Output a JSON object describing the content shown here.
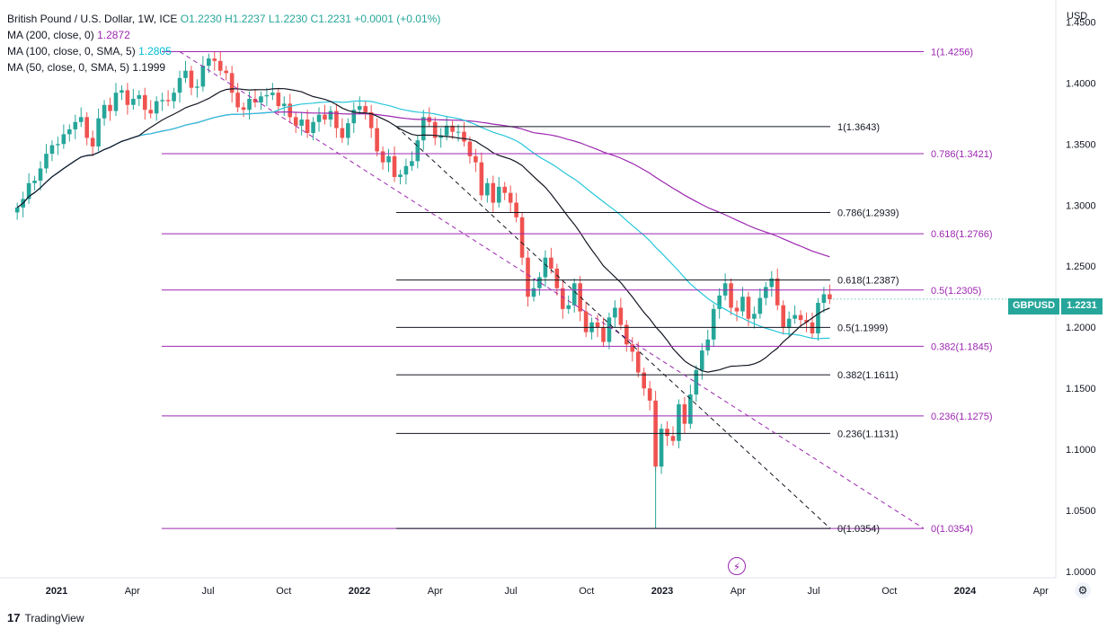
{
  "legend": {
    "title": "British Pound / U.S. Dollar, 1W, ICE",
    "ohlc": "O1.2230  H1.2237  L1.2230  C1.2231  +0.0001 (+0.01%)",
    "ma200_label": "MA (200, close, 0)",
    "ma200_value": "1.2872",
    "ma100_label": "MA (100, close, 0, SMA, 5)",
    "ma100_value": "1.2805",
    "ma50_label": "MA (50, close, 0, SMA, 5)",
    "ma50_value": "1.1999"
  },
  "currency_label": "USD",
  "price_tag": {
    "symbol": "GBPUSD",
    "price": "1.2231"
  },
  "branding": {
    "logo_text": "TradingView",
    "logo_mark": "17"
  },
  "colors": {
    "up": "#26a69a",
    "down": "#ef5350",
    "fib_purple": "#9c27b0",
    "fib_black": "#131722",
    "ma100": "#26c6da",
    "ma200": "#9c27b0",
    "ma50": "#131722"
  },
  "chart_data": {
    "type": "candlestick",
    "title": "British Pound / U.S. Dollar, 1W, ICE",
    "ylim": [
      0.995,
      1.4605
    ],
    "y_ticks": [
      "1.4500",
      "1.4000",
      "1.3500",
      "1.3000",
      "1.2500",
      "1.2000",
      "1.1500",
      "1.1000",
      "1.0500",
      "1.0000"
    ],
    "x_ticks": [
      {
        "label": "2021",
        "t": 0.0,
        "bold": true
      },
      {
        "label": "Apr",
        "t": 0.25
      },
      {
        "label": "Jul",
        "t": 0.5
      },
      {
        "label": "Oct",
        "t": 0.75
      },
      {
        "label": "2022",
        "t": 1.0,
        "bold": true
      },
      {
        "label": "Apr",
        "t": 1.25
      },
      {
        "label": "Jul",
        "t": 1.5
      },
      {
        "label": "Oct",
        "t": 1.75
      },
      {
        "label": "2023",
        "t": 2.0,
        "bold": true
      },
      {
        "label": "Apr",
        "t": 2.25
      },
      {
        "label": "Jul",
        "t": 2.5
      },
      {
        "label": "Oct",
        "t": 2.75
      },
      {
        "label": "2024",
        "t": 3.0,
        "bold": true
      },
      {
        "label": "Apr",
        "t": 3.25
      }
    ],
    "candles_start": 2020.87,
    "candle_step_weeks": 1,
    "closes": [
      1.298,
      1.305,
      1.318,
      1.32,
      1.33,
      1.342,
      1.349,
      1.35,
      1.358,
      1.362,
      1.368,
      1.372,
      1.355,
      1.348,
      1.371,
      1.382,
      1.377,
      1.392,
      1.394,
      1.382,
      1.387,
      1.39,
      1.378,
      1.375,
      1.385,
      1.386,
      1.385,
      1.392,
      1.404,
      1.41,
      1.396,
      1.397,
      1.414,
      1.42,
      1.418,
      1.41,
      1.408,
      1.392,
      1.38,
      1.378,
      1.387,
      1.384,
      1.389,
      1.39,
      1.392,
      1.381,
      1.383,
      1.372,
      1.365,
      1.37,
      1.359,
      1.368,
      1.374,
      1.37,
      1.377,
      1.363,
      1.355,
      1.367,
      1.378,
      1.381,
      1.376,
      1.363,
      1.344,
      1.335,
      1.34,
      1.323,
      1.325,
      1.332,
      1.336,
      1.353,
      1.372,
      1.368,
      1.355,
      1.357,
      1.365,
      1.36,
      1.36,
      1.352,
      1.34,
      1.335,
      1.308,
      1.318,
      1.302,
      1.315,
      1.31,
      1.302,
      1.29,
      1.257,
      1.225,
      1.232,
      1.241,
      1.257,
      1.248,
      1.232,
      1.215,
      1.218,
      1.236,
      1.213,
      1.196,
      1.204,
      1.2,
      1.188,
      1.208,
      1.216,
      1.202,
      1.186,
      1.18,
      1.163,
      1.15,
      1.14,
      1.086,
      1.117,
      1.111,
      1.107,
      1.137,
      1.121,
      1.145,
      1.165,
      1.181,
      1.19,
      1.215,
      1.226,
      1.236,
      1.216,
      1.213,
      1.225,
      1.207,
      1.211,
      1.224,
      1.233,
      1.24,
      1.218,
      1.2,
      1.207,
      1.21,
      1.206,
      1.204,
      1.195,
      1.22,
      1.227,
      1.223
    ],
    "last_close": 1.2231,
    "moving_averages": [
      {
        "name": "MA (200, close, 0)",
        "value": 1.2872,
        "color": "#9c27b0"
      },
      {
        "name": "MA (100, close, 0, SMA, 5)",
        "value": 1.2805,
        "color": "#26c6da"
      },
      {
        "name": "MA (50, close, 0, SMA, 5)",
        "value": 1.1999,
        "color": "#131722"
      }
    ],
    "fib_purple": [
      {
        "label": "1(1.4256)",
        "value": 1.4256
      },
      {
        "label": "0.786(1.3421)",
        "value": 1.3421
      },
      {
        "label": "0.618(1.2766)",
        "value": 1.2766
      },
      {
        "label": "0.5(1.2305)",
        "value": 1.2305
      },
      {
        "label": "0.382(1.1845)",
        "value": 1.1845
      },
      {
        "label": "0.236(1.1275)",
        "value": 1.1275
      },
      {
        "label": "0(1.0354)",
        "value": 1.0354
      }
    ],
    "fib_black": [
      {
        "label": "1(1.3643)",
        "value": 1.3643
      },
      {
        "label": "0.786(1.2939)",
        "value": 1.2939
      },
      {
        "label": "0.618(1.2387)",
        "value": 1.2387
      },
      {
        "label": "0.5(1.1999)",
        "value": 1.1999
      },
      {
        "label": "0.382(1.1611)",
        "value": 1.1611
      },
      {
        "label": "0.236(1.1131)",
        "value": 1.1131
      },
      {
        "label": "0(1.0354)",
        "value": 1.0354
      }
    ]
  }
}
